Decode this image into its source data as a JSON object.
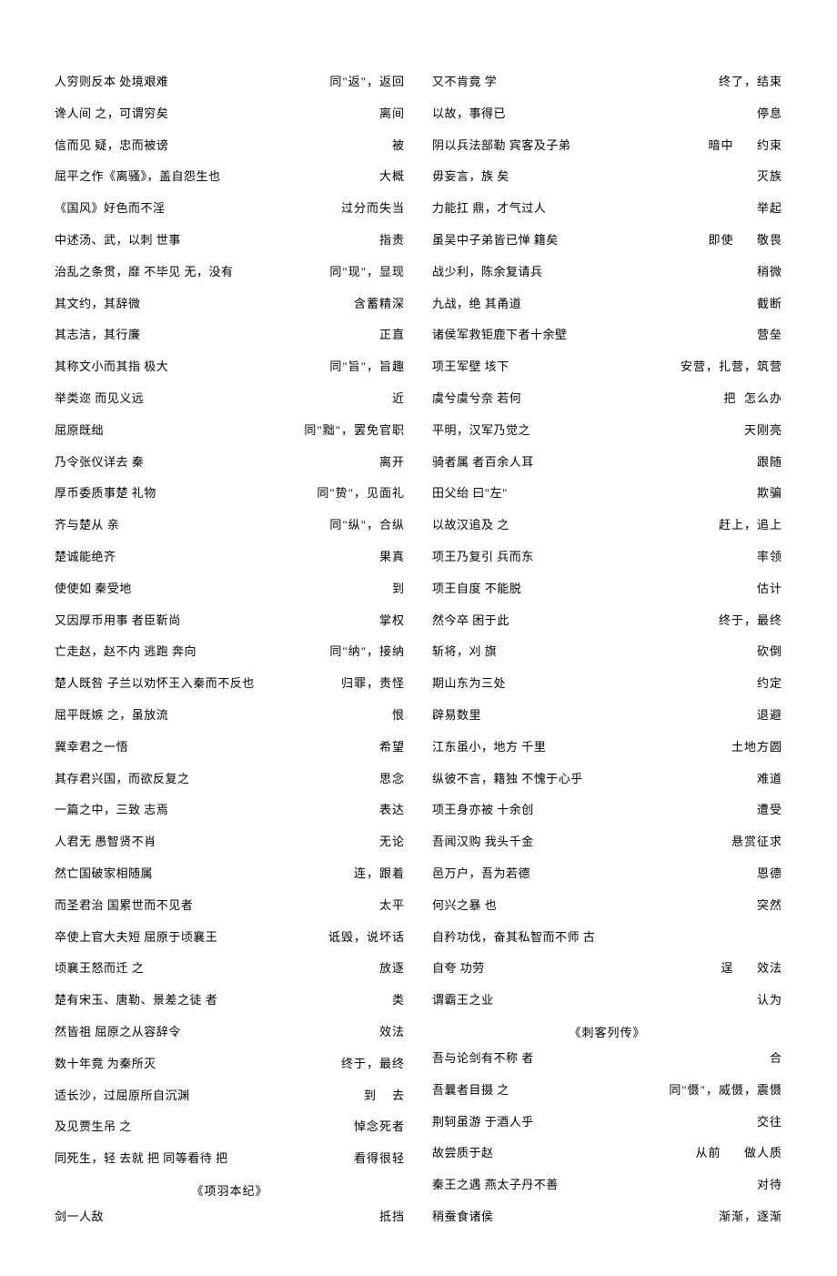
{
  "left": [
    {
      "phrase": "人穷则反本        处境艰难",
      "meaning": "同\"返\"，返回"
    },
    {
      "phrase": "谗人间 之，可谓穷矣",
      "meaning": "离间"
    },
    {
      "phrase": "信而见 疑，忠而被谤",
      "meaning": "被"
    },
    {
      "phrase": "屈平之作《离骚》，盖自怨生也",
      "meaning": "大概"
    },
    {
      "phrase": "《国风》好色而不淫",
      "meaning": "过分而失当"
    },
    {
      "phrase": "中述汤、武，以刺 世事",
      "meaning": "指责"
    },
    {
      "phrase": "治乱之条贯，靡 不毕见  无，没有",
      "meaning": "同\"现\"，显现"
    },
    {
      "phrase": "其文约，其辞微",
      "meaning": "含蓄精深"
    },
    {
      "phrase": "其志洁，其行廉",
      "meaning": "正直"
    },
    {
      "phrase": "其称文小而其指 极大",
      "meaning": "同\"旨\"，旨趣"
    },
    {
      "phrase": "举类迩 而见义远",
      "meaning": "近"
    },
    {
      "phrase": "屈原既绌",
      "meaning": "同\"黜\"，罢免官职"
    },
    {
      "phrase": "乃令张仪详去 秦",
      "meaning": "离开"
    },
    {
      "phrase": "厚币委质事楚        礼物",
      "meaning": "同\"贽\"，见面礼"
    },
    {
      "phrase": "齐与楚从 亲",
      "meaning": "同\"纵\"，合纵"
    },
    {
      "phrase": "楚诚能绝齐",
      "meaning": "果真"
    },
    {
      "phrase": "使使如 秦受地",
      "meaning": "到"
    },
    {
      "phrase": "又因厚币用事 者臣靳尚",
      "meaning": "掌权"
    },
    {
      "phrase": "亡走赵，赵不内    逃跑  奔向",
      "meaning": "同\"纳\"，接纳"
    },
    {
      "phrase": "楚人既咎 子兰以劝怀王入秦而不反也",
      "meaning": "归罪，责怪"
    },
    {
      "phrase": "屈平既嫉 之，虽放流",
      "meaning": "恨"
    },
    {
      "phrase": "冀幸君之一悟",
      "meaning": "希望"
    },
    {
      "phrase": "其存君兴国，而欲反复之",
      "meaning": "思念"
    },
    {
      "phrase": "一篇之中，三致 志焉",
      "meaning": "表达"
    },
    {
      "phrase": "人君无 愚智贤不肖",
      "meaning": "无论"
    },
    {
      "phrase": "然亡国破家相随属",
      "meaning": "连，跟着"
    },
    {
      "phrase": "而圣君治 国累世而不见者",
      "meaning": "太平"
    },
    {
      "phrase": "卒使上官大夫短  屈原于顷襄王",
      "meaning": "诋毁，说坏话"
    },
    {
      "phrase": "顷襄王怒而迁 之",
      "meaning": "放逐"
    },
    {
      "phrase": "楚有宋玉、唐勒、景差之徒  者",
      "meaning": "类"
    },
    {
      "phrase": "然皆祖 屈原之从容辞令",
      "meaning": "效法"
    },
    {
      "phrase": "数十年竟 为秦所灭",
      "meaning": "终于，最终"
    },
    {
      "phrase": "适长沙，过屈原所自沉渊",
      "meaning": "到    去"
    },
    {
      "phrase": "及见贾生吊 之",
      "meaning": "悼念死者"
    },
    {
      "phrase": "同死生，轻 去就  把  同等看待    把",
      "meaning": "看得很轻"
    },
    {
      "title": "《项羽本纪》"
    },
    {
      "phrase": "剑一人敌",
      "meaning": "抵挡"
    }
  ],
  "right": [
    {
      "phrase": "又不肯竟 学",
      "meaning": "终了，结束"
    },
    {
      "phrase": "以故，事得已",
      "meaning": "停息"
    },
    {
      "phrase": "阴以兵法部勒 宾客及子弟",
      "meaning": "暗中      约束"
    },
    {
      "phrase": "毋妄言，族 矣",
      "meaning": "灭族"
    },
    {
      "phrase": "力能扛 鼎，才气过人",
      "meaning": "举起"
    },
    {
      "phrase": "虽吴中子弟皆已惮 籍矣",
      "meaning": "即使      敬畏"
    },
    {
      "phrase": "战少利，陈余复请兵",
      "meaning": "稍微"
    },
    {
      "phrase": "九战，绝 其甬道",
      "meaning": "截断"
    },
    {
      "phrase": "诸侯军救钜鹿下者十余壁",
      "meaning": "营垒"
    },
    {
      "phrase": "项王军壁 垓下",
      "meaning": "安营，扎营，筑营"
    },
    {
      "phrase": "虞兮虞兮奈 若何",
      "meaning": "把  怎么办"
    },
    {
      "phrase": "平明，汉军乃觉之",
      "meaning": "天刚亮"
    },
    {
      "phrase": "骑者属 者百余人耳",
      "meaning": "跟随"
    },
    {
      "phrase": "田父绐 曰\"左\"",
      "meaning": "欺骗"
    },
    {
      "phrase": "以故汉追及  之",
      "meaning": "赶上，追上"
    },
    {
      "phrase": "项王乃复引  兵而东",
      "meaning": "率领"
    },
    {
      "phrase": "项王自度 不能脱",
      "meaning": "估计"
    },
    {
      "phrase": "然今卒 困于此",
      "meaning": "终于，最终"
    },
    {
      "phrase": "斩将，刈 旗",
      "meaning": "砍倒"
    },
    {
      "phrase": "期山东为三处",
      "meaning": "约定"
    },
    {
      "phrase": "辟易数里",
      "meaning": "退避"
    },
    {
      "phrase": "江东虽小，地方 千里",
      "meaning": "土地方圆"
    },
    {
      "phrase": "纵彼不言，籍独 不愧于心乎",
      "meaning": "难道"
    },
    {
      "phrase": "项王身亦被  十余创",
      "meaning": "遭受"
    },
    {
      "phrase": "吾闻汉购 我头千金",
      "meaning": "悬赏征求"
    },
    {
      "phrase": "邑万户，吾为若德",
      "meaning": "恩德"
    },
    {
      "phrase": "何兴之暴 也",
      "meaning": "突然"
    },
    {
      "phrase": "自矜功伐，奋其私智而不师 古",
      "meaning": ""
    },
    {
      "phrase": "          自夸    功劳",
      "meaning": "逞      效法"
    },
    {
      "phrase": "谓霸王之业",
      "meaning": "认为"
    },
    {
      "title": "《刺客列传》"
    },
    {
      "phrase": "吾与论剑有不称  者",
      "meaning": "合"
    },
    {
      "phrase": "吾曩者目摄 之",
      "meaning": "同\"慑\"，威慑，震慑"
    },
    {
      "phrase": "荆轲虽游 于酒人乎",
      "meaning": "交往"
    },
    {
      "phrase": "故尝质于赵",
      "meaning": "从前      做人质"
    },
    {
      "phrase": "秦王之遇 燕太子丹不善",
      "meaning": "对待"
    },
    {
      "phrase": "稍蚕食诸侯",
      "meaning": "渐渐，逐渐"
    }
  ]
}
